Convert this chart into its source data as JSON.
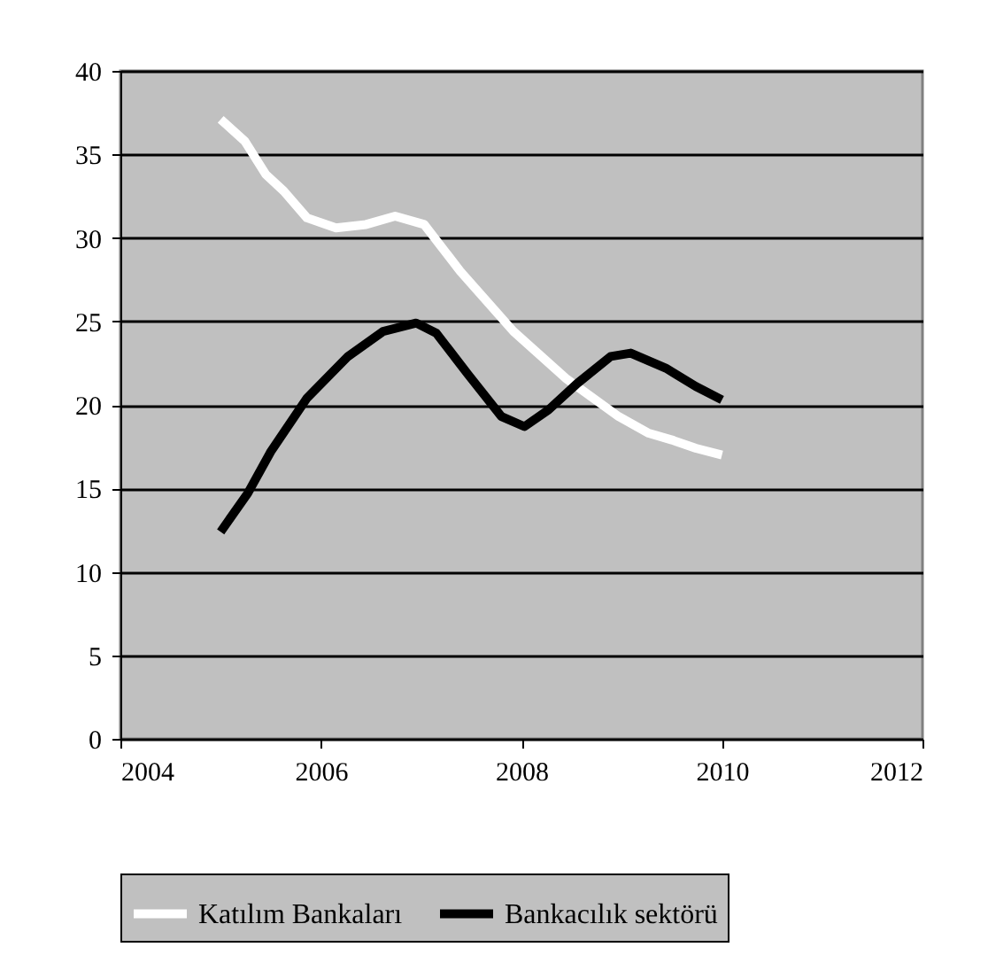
{
  "chart_data": {
    "type": "line",
    "xlim": [
      2004,
      2012
    ],
    "xticks": [
      2004,
      2006,
      2008,
      2010,
      2012
    ],
    "ylim": [
      0,
      40
    ],
    "yticks": [
      0,
      5,
      10,
      15,
      20,
      25,
      30,
      35,
      40
    ],
    "grid": "y",
    "legend": "bottom",
    "marker": "none",
    "line_style": "solid",
    "series": [
      {
        "name": "Katılım Bankaları",
        "color": "#ffffff",
        "x": [
          2005,
          2005.24,
          2005.45,
          2005.63,
          2005.86,
          2006.15,
          2006.45,
          2006.74,
          2007.03,
          2007.39,
          2007.92,
          2008.44,
          2008.97,
          2009.27,
          2009.5,
          2009.74,
          2010
        ],
        "values": [
          37.1,
          35.8,
          33.8,
          32.8,
          31.2,
          30.6,
          30.8,
          31.3,
          30.8,
          28.0,
          24.4,
          21.6,
          19.3,
          18.3,
          17.9,
          17.4,
          17.0
        ]
      },
      {
        "name": "Bankacılık sektörü",
        "color": "#000000",
        "x": [
          2005,
          2005.27,
          2005.5,
          2005.86,
          2006.27,
          2006.62,
          2006.95,
          2007.15,
          2007.47,
          2007.8,
          2008.03,
          2008.27,
          2008.56,
          2008.89,
          2009.09,
          2009.44,
          2009.74,
          2010
        ],
        "values": [
          12.4,
          14.7,
          17.2,
          20.4,
          22.9,
          24.4,
          24.9,
          24.3,
          21.8,
          19.3,
          18.7,
          19.7,
          21.3,
          22.9,
          23.1,
          22.2,
          21.1,
          20.3
        ]
      }
    ]
  }
}
